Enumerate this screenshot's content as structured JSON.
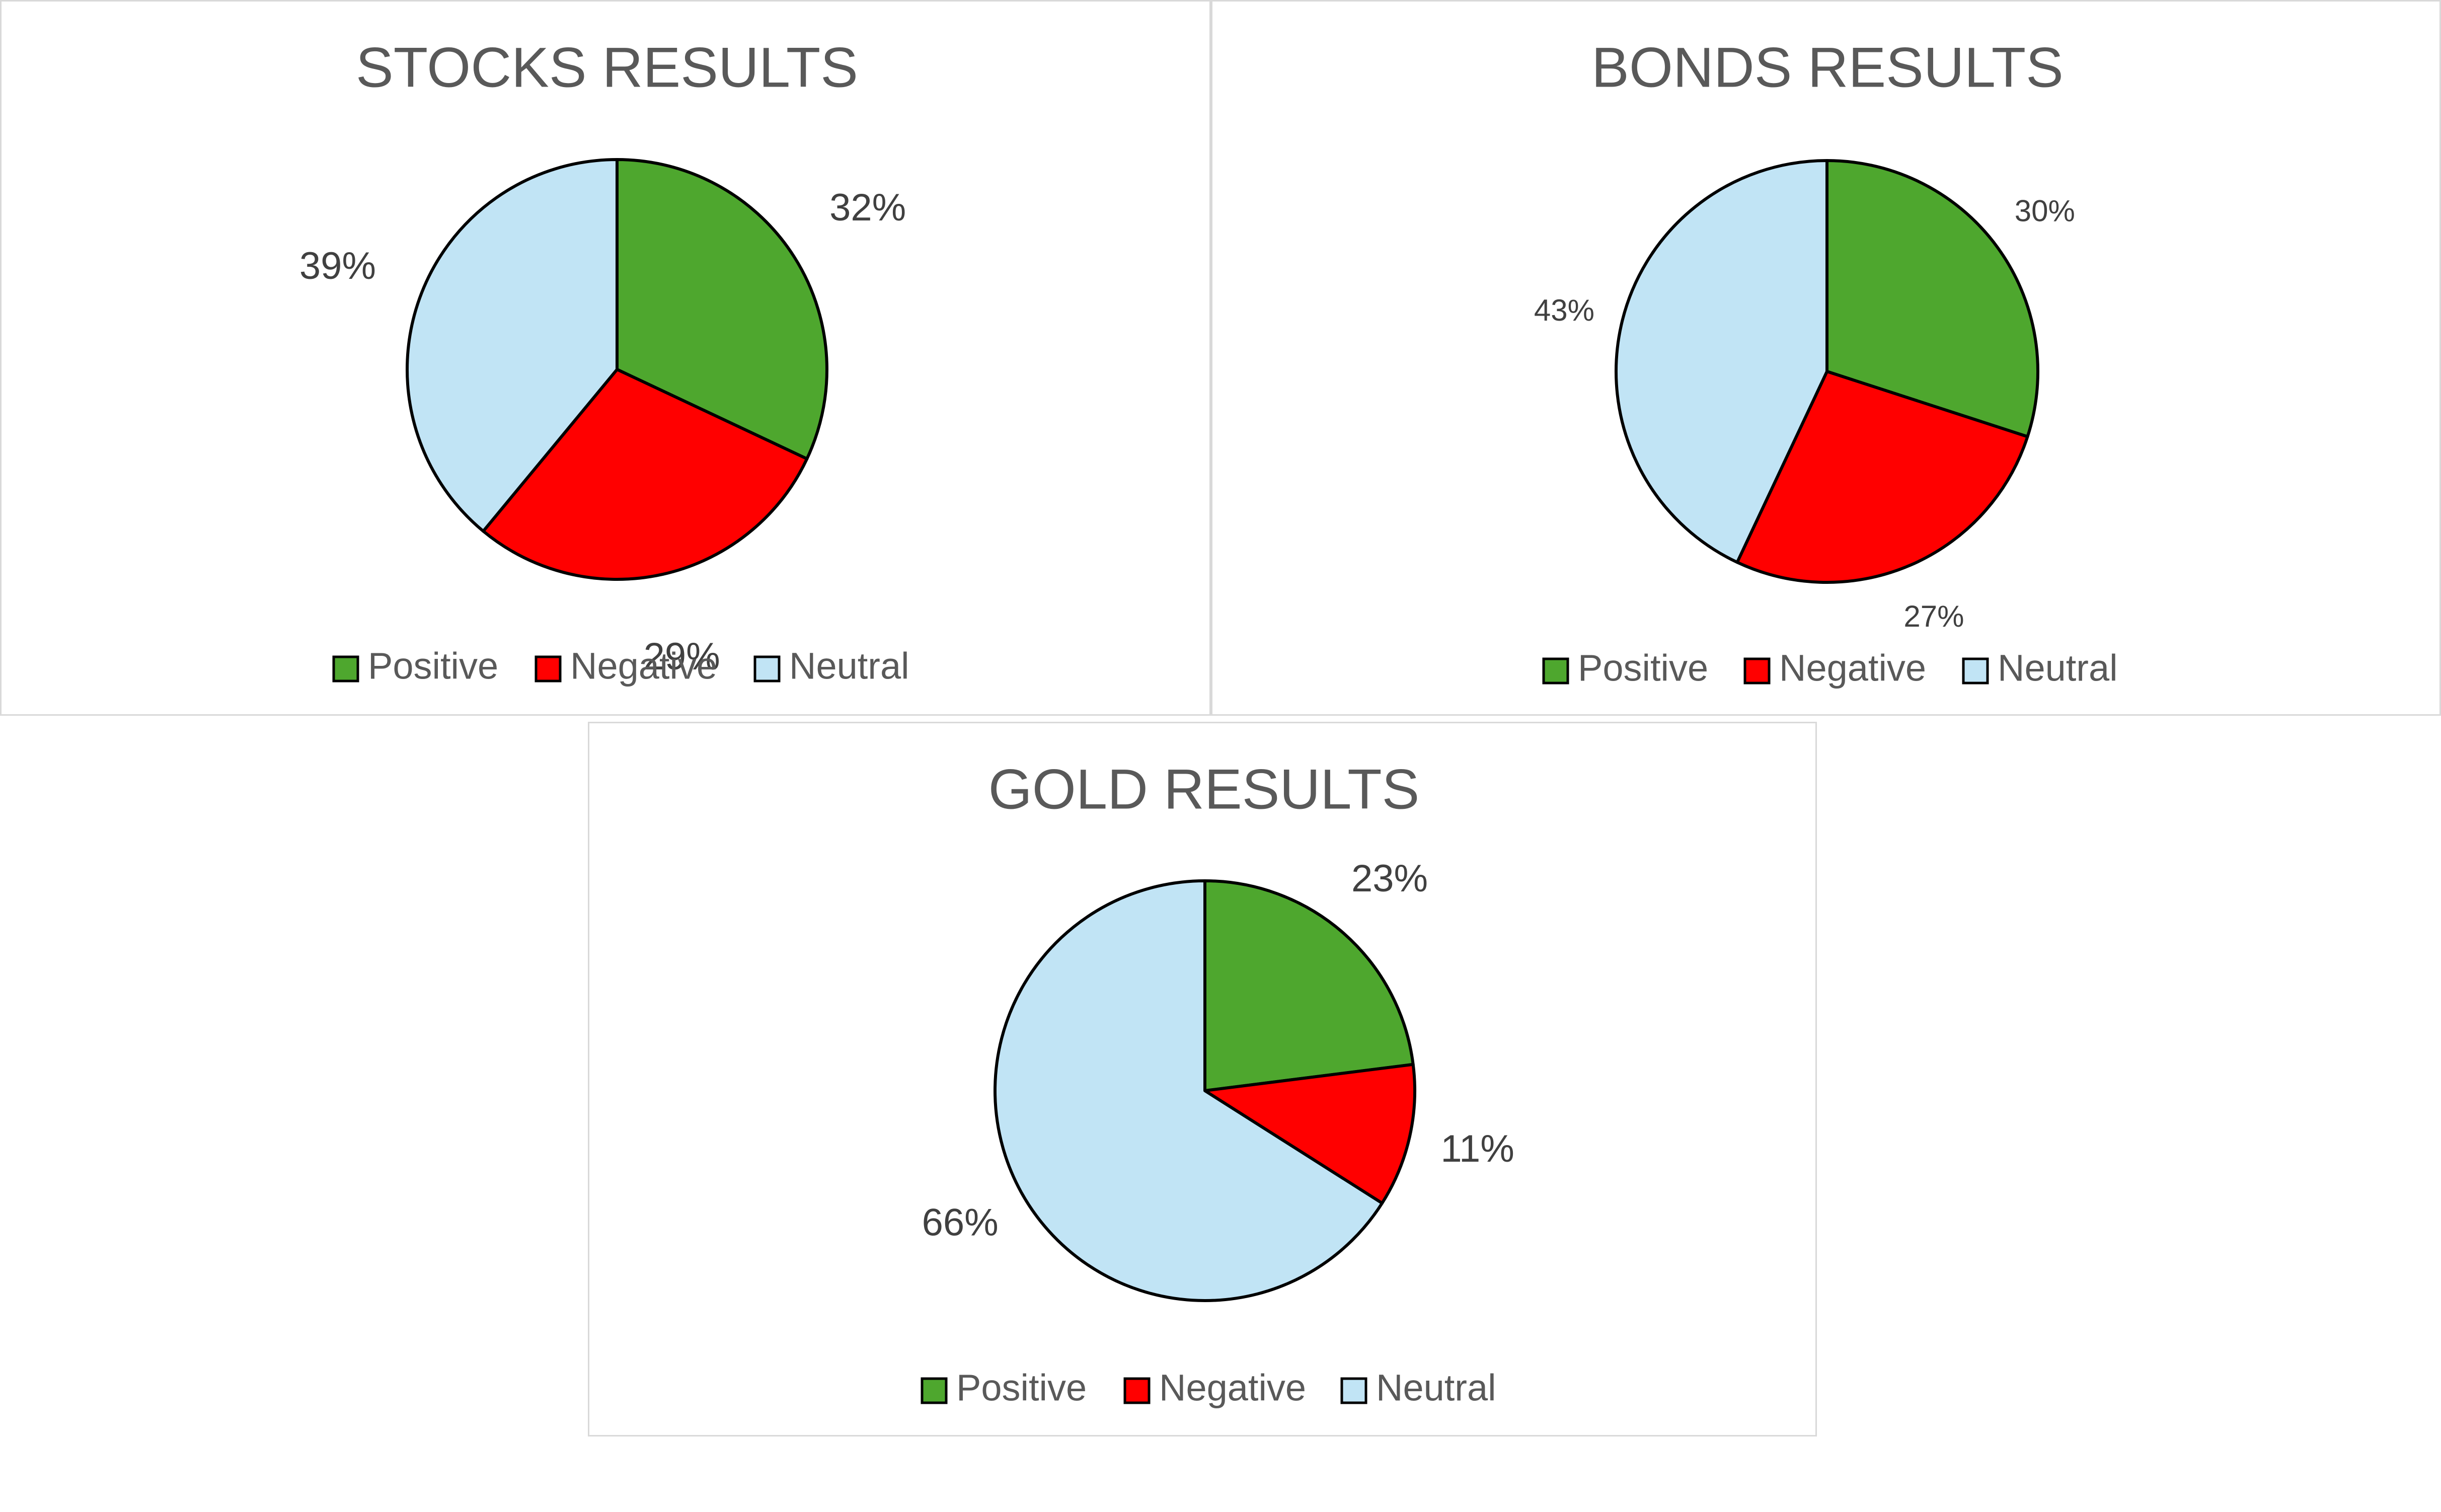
{
  "colors": {
    "positive": "#4ea72e",
    "negative": "#ff0000",
    "neutral": "#c1e4f5",
    "outline": "#000000",
    "title": "#595959",
    "label": "#404040"
  },
  "chart_data": [
    {
      "type": "pie",
      "title": "STOCKS RESULTS",
      "categories": [
        "Positive",
        "Negative",
        "Neutral"
      ],
      "values": [
        32,
        29,
        39
      ],
      "data_labels": [
        "32%",
        "29%",
        "39%"
      ],
      "legend": [
        "Positive",
        "Negative",
        "Neutral"
      ],
      "legend_position": "bottom"
    },
    {
      "type": "pie",
      "title": "BONDS RESULTS",
      "categories": [
        "Positive",
        "Negative",
        "Neutral"
      ],
      "values": [
        30,
        27,
        43
      ],
      "data_labels": [
        "30%",
        "27%",
        "43%"
      ],
      "legend": [
        "Positive",
        "Negative",
        "Neutral"
      ],
      "legend_position": "bottom"
    },
    {
      "type": "pie",
      "title": "GOLD RESULTS",
      "categories": [
        "Positive",
        "Negative",
        "Neutral"
      ],
      "values": [
        23,
        11,
        66
      ],
      "data_labels": [
        "23%",
        "11%",
        "66%"
      ],
      "legend": [
        "Positive",
        "Negative",
        "Neutral"
      ],
      "legend_position": "bottom"
    }
  ]
}
